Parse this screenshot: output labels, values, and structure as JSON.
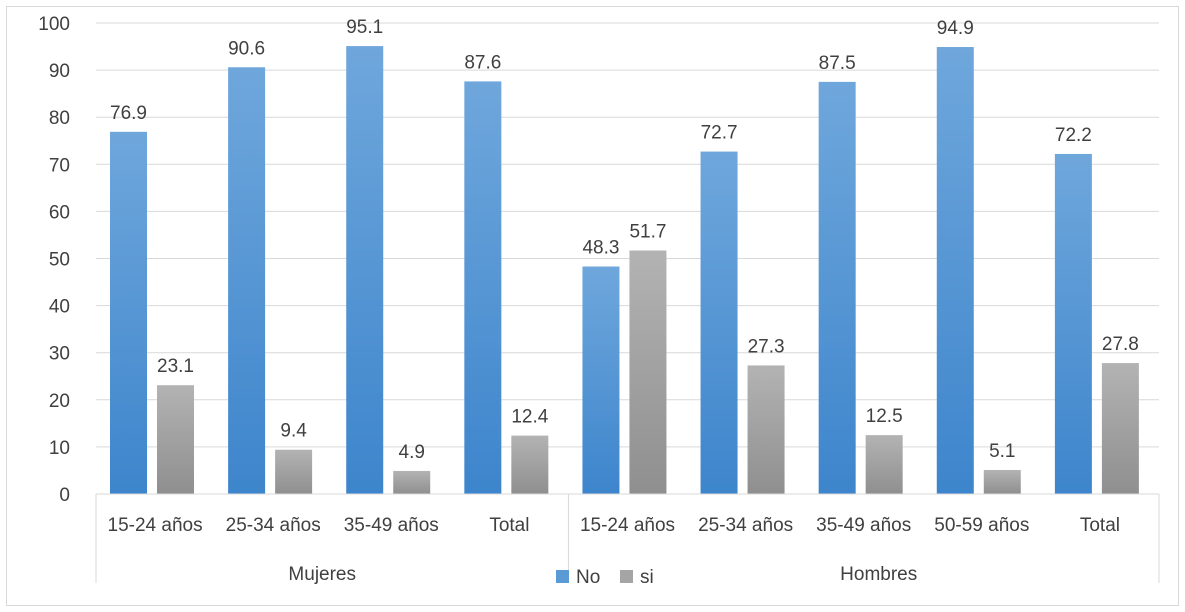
{
  "chart_data": {
    "type": "bar",
    "groups": [
      {
        "name": "Mujeres",
        "categories": [
          "15-24 años",
          "25-34 años",
          "35-49 años",
          "Total"
        ]
      },
      {
        "name": "Hombres",
        "categories": [
          "15-24 años",
          "25-34 años",
          "35-49 años",
          "50-59 años",
          "Total"
        ]
      }
    ],
    "series": [
      {
        "name": "No",
        "color": "#5b9bd5",
        "values": [
          76.9,
          90.6,
          95.1,
          87.6,
          48.3,
          72.7,
          87.5,
          94.9,
          72.2
        ]
      },
      {
        "name": "si",
        "color": "#a5a5a5",
        "values": [
          23.1,
          9.4,
          4.9,
          12.4,
          51.7,
          27.3,
          12.5,
          5.1,
          27.8
        ]
      }
    ],
    "ylim": [
      0,
      100
    ],
    "yticks": [
      0,
      10,
      20,
      30,
      40,
      50,
      60,
      70,
      80,
      90,
      100
    ],
    "grid": true,
    "legend_position": "bottom"
  }
}
